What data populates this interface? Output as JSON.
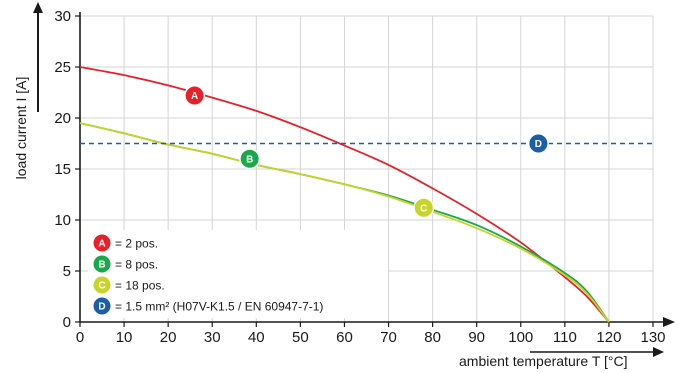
{
  "chart_data": {
    "type": "line",
    "xlabel": "ambient temperature T [°C]",
    "ylabel": "load current I [A]",
    "xlim": [
      0,
      130
    ],
    "ylim": [
      0,
      30
    ],
    "x_ticks": [
      "0",
      "10",
      "20",
      "30",
      "40",
      "50",
      "60",
      "70",
      "80",
      "90",
      "100",
      "110",
      "120",
      "130"
    ],
    "y_ticks": [
      "0",
      "5",
      "10",
      "15",
      "20",
      "25",
      "30"
    ],
    "grid": true,
    "series": [
      {
        "name": "= 2 pos.",
        "badge": "A",
        "color": "#e8202a",
        "x": [
          0,
          10,
          20,
          30,
          40,
          50,
          60,
          70,
          80,
          90,
          100,
          110,
          115,
          120
        ],
        "y": [
          25.0,
          24.2,
          23.2,
          22.0,
          20.7,
          19.1,
          17.3,
          15.4,
          13.1,
          10.6,
          7.8,
          4.4,
          2.5,
          0
        ]
      },
      {
        "name": "= 8 pos.",
        "badge": "B",
        "color": "#1aa84a",
        "x": [
          0,
          10,
          20,
          30,
          40,
          50,
          60,
          70,
          80,
          90,
          100,
          110,
          115,
          120
        ],
        "y": [
          19.5,
          18.5,
          17.4,
          16.5,
          15.4,
          14.5,
          13.5,
          12.4,
          11.0,
          9.5,
          7.4,
          4.8,
          3.0,
          0
        ]
      },
      {
        "name": "= 18 pos.",
        "badge": "C",
        "color": "#c8d42a",
        "x": [
          0,
          10,
          20,
          30,
          40,
          50,
          60,
          70,
          80,
          90,
          100,
          110,
          115,
          120
        ],
        "y": [
          19.5,
          18.5,
          17.4,
          16.5,
          15.4,
          14.5,
          13.5,
          12.3,
          10.8,
          9.2,
          7.2,
          4.6,
          2.8,
          0
        ]
      },
      {
        "name": "= 1.5 mm² (H07V-K1.5 / EN 60947-7-1)",
        "badge": "D",
        "color": "#1a5fa8",
        "style": "dashed",
        "x": [
          0,
          130
        ],
        "y": [
          17.5,
          17.5
        ]
      }
    ],
    "markers": [
      {
        "badge": "A",
        "x": 26,
        "y": 22.2
      },
      {
        "badge": "B",
        "x": 38.5,
        "y": 16.0
      },
      {
        "badge": "C",
        "x": 78,
        "y": 11.2
      },
      {
        "badge": "D",
        "x": 104,
        "y": 17.5
      }
    ],
    "legend_placement": "bottom-left"
  }
}
